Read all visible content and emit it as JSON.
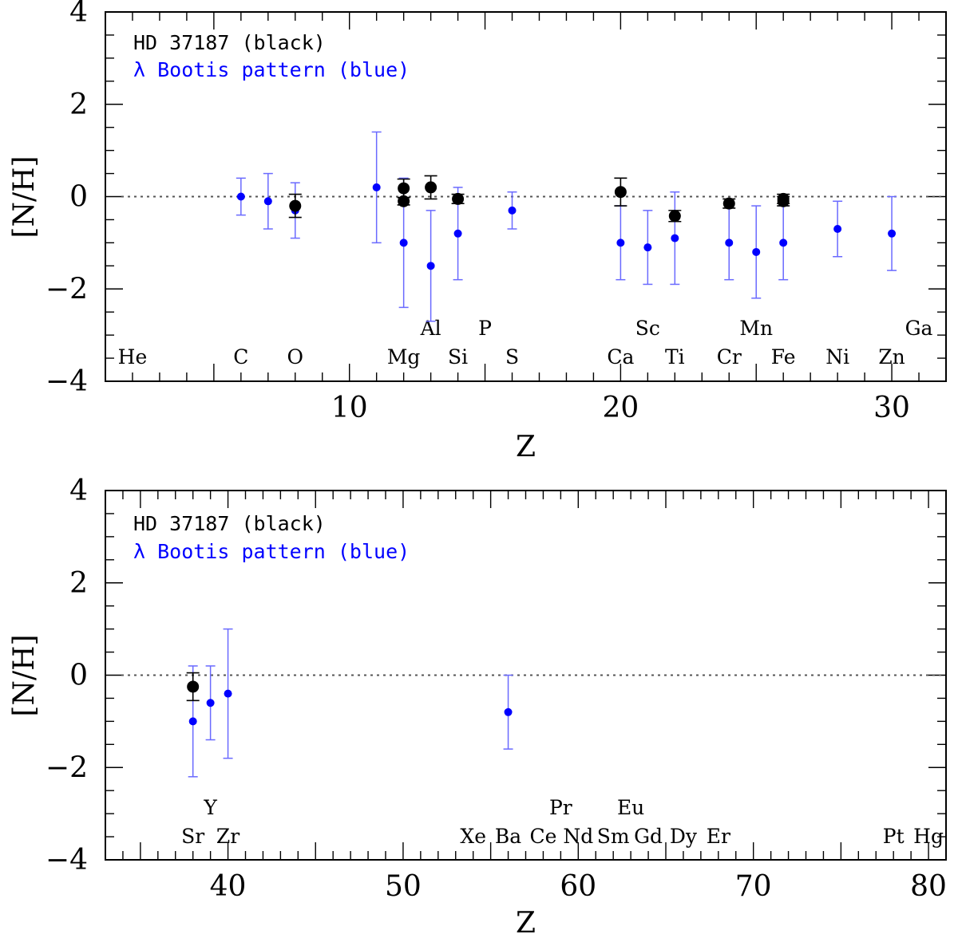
{
  "chart_data": [
    {
      "type": "scatter",
      "xlabel": "Z",
      "ylabel": "[N/H]",
      "xlim": [
        1,
        32
      ],
      "ylim": [
        -4,
        4
      ],
      "xticks": [
        10,
        20,
        30
      ],
      "yticks": [
        4,
        2,
        0,
        -2,
        -4
      ],
      "reference_line": 0,
      "legend": [
        {
          "text": "HD 37187 (black)",
          "color": "#000000"
        },
        {
          "text": "λ Bootis pattern (blue)",
          "color": "#0000ff"
        }
      ],
      "element_labels": [
        {
          "symbol": "He",
          "z": 2,
          "row": "lower"
        },
        {
          "symbol": "C",
          "z": 6,
          "row": "lower"
        },
        {
          "symbol": "O",
          "z": 8,
          "row": "lower"
        },
        {
          "symbol": "Mg",
          "z": 12,
          "row": "lower"
        },
        {
          "symbol": "Al",
          "z": 13,
          "row": "upper"
        },
        {
          "symbol": "Si",
          "z": 14,
          "row": "lower"
        },
        {
          "symbol": "P",
          "z": 15,
          "row": "upper"
        },
        {
          "symbol": "S",
          "z": 16,
          "row": "lower"
        },
        {
          "symbol": "Ca",
          "z": 20,
          "row": "lower"
        },
        {
          "symbol": "Sc",
          "z": 21,
          "row": "upper"
        },
        {
          "symbol": "Ti",
          "z": 22,
          "row": "lower"
        },
        {
          "symbol": "Cr",
          "z": 24,
          "row": "lower"
        },
        {
          "symbol": "Mn",
          "z": 25,
          "row": "upper"
        },
        {
          "symbol": "Fe",
          "z": 26,
          "row": "lower"
        },
        {
          "symbol": "Ni",
          "z": 28,
          "row": "lower"
        },
        {
          "symbol": "Zn",
          "z": 30,
          "row": "lower"
        },
        {
          "symbol": "Ga",
          "z": 31,
          "row": "upper"
        }
      ],
      "series": [
        {
          "name": "HD 37187",
          "color": "#000000",
          "points": [
            {
              "z": 8,
              "y": -0.2,
              "err": 0.25
            },
            {
              "z": 12,
              "y": 0.18,
              "err": 0.2
            },
            {
              "z": 12,
              "y": -0.1,
              "err": 0.08
            },
            {
              "z": 13,
              "y": 0.2,
              "err": 0.25
            },
            {
              "z": 14,
              "y": -0.05,
              "err": 0.1
            },
            {
              "z": 20,
              "y": 0.1,
              "err": 0.3
            },
            {
              "z": 22,
              "y": -0.42,
              "err": 0.12
            },
            {
              "z": 24,
              "y": -0.15,
              "err": 0.1
            },
            {
              "z": 26,
              "y": -0.05,
              "err": 0.1
            },
            {
              "z": 26,
              "y": -0.1,
              "err": 0.1
            }
          ]
        },
        {
          "name": "λ Bootis pattern",
          "color": "#0000ff",
          "points": [
            {
              "z": 6,
              "y": 0.0,
              "err": 0.4
            },
            {
              "z": 7,
              "y": -0.1,
              "err": 0.6
            },
            {
              "z": 8,
              "y": -0.3,
              "err": 0.6
            },
            {
              "z": 11,
              "y": 0.2,
              "err": 1.2
            },
            {
              "z": 12,
              "y": -1.0,
              "err": 1.4
            },
            {
              "z": 13,
              "y": -1.5,
              "err": 1.2
            },
            {
              "z": 14,
              "y": -0.8,
              "err": 1.0
            },
            {
              "z": 16,
              "y": -0.3,
              "err": 0.4
            },
            {
              "z": 20,
              "y": -1.0,
              "err": 0.8
            },
            {
              "z": 21,
              "y": -1.1,
              "err": 0.8
            },
            {
              "z": 22,
              "y": -0.9,
              "err": 1.0
            },
            {
              "z": 24,
              "y": -1.0,
              "err": 0.8
            },
            {
              "z": 25,
              "y": -1.2,
              "err": 1.0
            },
            {
              "z": 26,
              "y": -1.0,
              "err": 0.8
            },
            {
              "z": 28,
              "y": -0.7,
              "err": 0.6
            },
            {
              "z": 30,
              "y": -0.8,
              "err": 0.8
            }
          ]
        }
      ]
    },
    {
      "type": "scatter",
      "xlabel": "Z",
      "ylabel": "[N/H]",
      "xlim": [
        33,
        81
      ],
      "ylim": [
        -4,
        4
      ],
      "xticks": [
        40,
        50,
        60,
        70,
        80
      ],
      "yticks": [
        4,
        2,
        0,
        -2,
        -4
      ],
      "reference_line": 0,
      "legend": [
        {
          "text": "HD 37187 (black)",
          "color": "#000000"
        },
        {
          "text": "λ Bootis pattern (blue)",
          "color": "#0000ff"
        }
      ],
      "element_labels": [
        {
          "symbol": "Sr",
          "z": 38,
          "row": "lower"
        },
        {
          "symbol": "Y",
          "z": 39,
          "row": "upper"
        },
        {
          "symbol": "Zr",
          "z": 40,
          "row": "lower"
        },
        {
          "symbol": "Xe",
          "z": 54,
          "row": "lower"
        },
        {
          "symbol": "Ba",
          "z": 56,
          "row": "lower"
        },
        {
          "symbol": "Ce",
          "z": 58,
          "row": "lower"
        },
        {
          "symbol": "Pr",
          "z": 59,
          "row": "upper"
        },
        {
          "symbol": "Nd",
          "z": 60,
          "row": "lower"
        },
        {
          "symbol": "Sm",
          "z": 62,
          "row": "lower"
        },
        {
          "symbol": "Eu",
          "z": 63,
          "row": "upper"
        },
        {
          "symbol": "Gd",
          "z": 64,
          "row": "lower"
        },
        {
          "symbol": "Dy",
          "z": 66,
          "row": "lower"
        },
        {
          "symbol": "Er",
          "z": 68,
          "row": "lower"
        },
        {
          "symbol": "Pt",
          "z": 78,
          "row": "lower"
        },
        {
          "symbol": "Hg",
          "z": 80,
          "row": "lower"
        }
      ],
      "series": [
        {
          "name": "HD 37187",
          "color": "#000000",
          "points": [
            {
              "z": 38,
              "y": -0.25,
              "err": 0.3
            }
          ]
        },
        {
          "name": "λ Bootis pattern",
          "color": "#0000ff",
          "points": [
            {
              "z": 38,
              "y": -1.0,
              "err": 1.2
            },
            {
              "z": 39,
              "y": -0.6,
              "err": 0.8
            },
            {
              "z": 40,
              "y": -0.4,
              "err": 1.4
            },
            {
              "z": 56,
              "y": -0.8,
              "err": 0.8
            }
          ]
        }
      ]
    }
  ]
}
